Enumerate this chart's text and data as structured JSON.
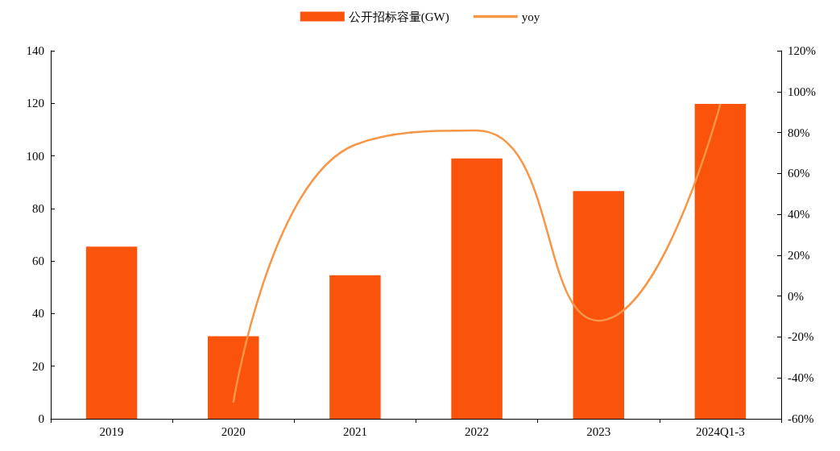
{
  "chart_data": {
    "type": "bar",
    "categories": [
      "2019",
      "2020",
      "2021",
      "2022",
      "2023",
      "2024Q1-3"
    ],
    "series": [
      {
        "name": "公开招标容量(GW)",
        "color": "#f9530c",
        "values": [
          65.5,
          31.4,
          54.6,
          99.0,
          86.6,
          119.8
        ]
      },
      {
        "name": "yoy",
        "type": "line",
        "axis": "y2",
        "color": "#f79646",
        "values": [
          null,
          -52,
          74,
          81,
          -12,
          94
        ]
      }
    ],
    "ylim": [
      0,
      140
    ],
    "yticks": [
      0,
      20,
      40,
      60,
      80,
      100,
      120,
      140
    ],
    "y2lim": [
      -60,
      120
    ],
    "y2ticks": [
      {
        "value": -60,
        "label": "-60%"
      },
      {
        "value": -40,
        "label": "-40%"
      },
      {
        "value": -20,
        "label": "-20%"
      },
      {
        "value": 0,
        "label": "0%"
      },
      {
        "value": 20,
        "label": "20%"
      },
      {
        "value": 40,
        "label": "40%"
      },
      {
        "value": 60,
        "label": "60%"
      },
      {
        "value": 80,
        "label": "80%"
      },
      {
        "value": 100,
        "label": "100%"
      },
      {
        "value": 120,
        "label": "120%"
      }
    ],
    "legend": "top",
    "grid": false,
    "marker": "none"
  }
}
